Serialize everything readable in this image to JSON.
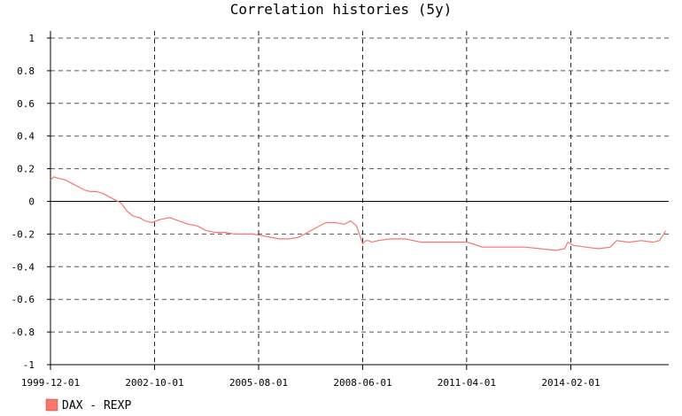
{
  "chart_data": {
    "type": "line",
    "title": "Correlation histories (5y)",
    "xlabel": "",
    "ylabel": "",
    "ylim": [
      -1,
      1
    ],
    "y_ticks": [
      "1",
      "0.8",
      "0.6",
      "0.4",
      "0.2",
      "0",
      "-0.2",
      "-0.4",
      "-0.6",
      "-0.8",
      "-1"
    ],
    "x_tick_labels": [
      "1999-12-01",
      "2002-10-01",
      "2005-08-01",
      "2008-06-01",
      "2011-04-01",
      "2014-02-01"
    ],
    "xlim": [
      "1999-12-01",
      "2016-10-01"
    ],
    "grid": true,
    "legend_position": "bottom-left",
    "colors": {
      "series": "#f8766d",
      "grid": "#555555",
      "axis": "#000000",
      "text": "#000000"
    },
    "series": [
      {
        "name": "DAX - REXP",
        "x": [
          "1999-12-01",
          "2000-01-01",
          "2000-03-01",
          "2000-05-01",
          "2000-07-01",
          "2000-09-01",
          "2000-11-01",
          "2001-01-01",
          "2001-03-01",
          "2001-05-01",
          "2001-08-01",
          "2001-11-01",
          "2002-01-01",
          "2002-03-01",
          "2002-05-01",
          "2002-07-01",
          "2002-09-01",
          "2002-12-01",
          "2003-03-01",
          "2003-06-01",
          "2003-09-01",
          "2003-12-01",
          "2004-03-01",
          "2004-06-01",
          "2004-09-01",
          "2004-12-01",
          "2005-03-01",
          "2005-06-01",
          "2005-09-01",
          "2005-12-01",
          "2006-03-01",
          "2006-06-01",
          "2006-09-01",
          "2006-12-01",
          "2007-03-01",
          "2007-06-01",
          "2007-09-01",
          "2007-12-01",
          "2008-02-01",
          "2008-04-01",
          "2008-06-01",
          "2008-07-01",
          "2008-08-01",
          "2008-09-01",
          "2008-11-01",
          "2009-03-01",
          "2009-08-01",
          "2010-01-01",
          "2010-06-01",
          "2010-11-01",
          "2011-04-01",
          "2011-06-01",
          "2011-09-01",
          "2012-01-01",
          "2012-06-01",
          "2012-11-01",
          "2013-04-01",
          "2013-09-01",
          "2013-12-01",
          "2014-01-01",
          "2014-03-01",
          "2014-07-01",
          "2014-11-01",
          "2015-03-01",
          "2015-05-01",
          "2015-09-01",
          "2016-01-01",
          "2016-05-01",
          "2016-07-01",
          "2016-09-01"
        ],
        "y": [
          0.13,
          0.15,
          0.14,
          0.13,
          0.11,
          0.09,
          0.07,
          0.06,
          0.06,
          0.05,
          0.02,
          -0.01,
          -0.06,
          -0.09,
          -0.1,
          -0.12,
          -0.13,
          -0.11,
          -0.1,
          -0.12,
          -0.14,
          -0.15,
          -0.18,
          -0.19,
          -0.19,
          -0.2,
          -0.2,
          -0.2,
          -0.21,
          -0.22,
          -0.23,
          -0.23,
          -0.22,
          -0.19,
          -0.16,
          -0.13,
          -0.13,
          -0.14,
          -0.12,
          -0.15,
          -0.26,
          -0.24,
          -0.24,
          -0.25,
          -0.24,
          -0.23,
          -0.23,
          -0.25,
          -0.25,
          -0.25,
          -0.25,
          -0.26,
          -0.28,
          -0.28,
          -0.28,
          -0.28,
          -0.29,
          -0.3,
          -0.29,
          -0.25,
          -0.27,
          -0.28,
          -0.29,
          -0.28,
          -0.24,
          -0.25,
          -0.24,
          -0.25,
          -0.24,
          -0.18
        ]
      }
    ]
  }
}
